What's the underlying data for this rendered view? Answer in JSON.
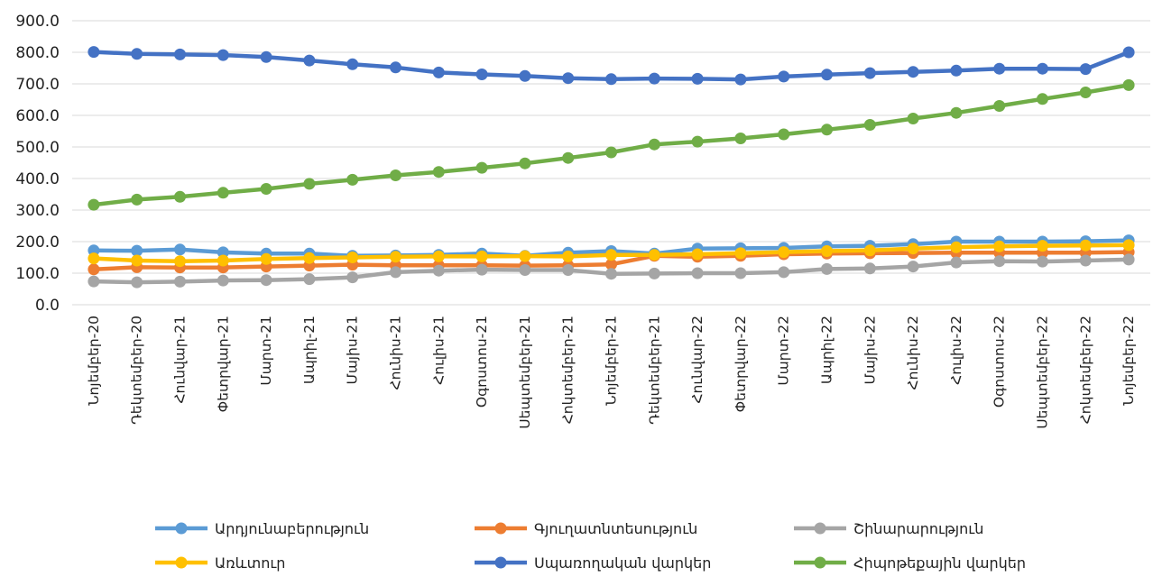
{
  "chart_data": {
    "type": "line",
    "title": "",
    "xlabel": "",
    "ylabel": "",
    "ylim": [
      0,
      900
    ],
    "yticks": [
      "0.0",
      "100.0",
      "200.0",
      "300.0",
      "400.0",
      "500.0",
      "600.0",
      "700.0",
      "800.0",
      "900.0"
    ],
    "grid": "horizontal",
    "legend_position": "bottom",
    "categories": [
      "Նոյեմբեր-20",
      "Դեկտեմբեր-20",
      "Հունվար-21",
      "Փետրվար-21",
      "Մարտ-21",
      "Ապրիլ-21",
      "Մայիս-21",
      "Հունիս-21",
      "Հուլիս-21",
      "Օգոստոս-21",
      "Սեպտեմբեր-21",
      "Հոկտեմբեր-21",
      "Նոյեմբեր-21",
      "Դեկտեմբեր-21",
      "Հունվար-22",
      "Փետրվար-22",
      "Մարտ-22",
      "Ապրիլ-22",
      "Մայիս-22",
      "Հունիս-22",
      "Հուլիս-22",
      "Օգոստոս-22",
      "Սեպտեմբեր-22",
      "Հոկտեմբեր-22",
      "Նոյեմբեր-22"
    ],
    "series": [
      {
        "name": "Արդյունաբերություն",
        "color": "#5b9bd5",
        "values": [
          172,
          171,
          175,
          166,
          162,
          162,
          155,
          156,
          158,
          162,
          155,
          165,
          170,
          162,
          178,
          179,
          180,
          185,
          187,
          192,
          200,
          200,
          200,
          201,
          204
        ]
      },
      {
        "name": "Գյուղատնտեսություն",
        "color": "#ed7d31",
        "values": [
          112,
          119,
          118,
          118,
          121,
          124,
          127,
          125,
          125,
          125,
          124,
          125,
          128,
          155,
          152,
          155,
          160,
          162,
          163,
          164,
          165,
          165,
          165,
          165,
          167
        ]
      },
      {
        "name": "Շինարարություն",
        "color": "#a5a5a5",
        "values": [
          74,
          71,
          73,
          77,
          78,
          81,
          87,
          103,
          108,
          111,
          110,
          110,
          98,
          99,
          100,
          100,
          103,
          113,
          115,
          121,
          134,
          138,
          137,
          140,
          143
        ]
      },
      {
        "name": "Առևտուր",
        "color": "#ffc000",
        "values": [
          147,
          140,
          138,
          140,
          145,
          148,
          150,
          152,
          153,
          153,
          154,
          153,
          158,
          158,
          160,
          163,
          167,
          170,
          172,
          178,
          182,
          185,
          187,
          188,
          189
        ]
      },
      {
        "name": "Սպառողական վարկեր",
        "color": "#4472c4",
        "values": [
          801,
          795,
          793,
          791,
          785,
          774,
          762,
          752,
          736,
          730,
          725,
          718,
          715,
          717,
          716,
          714,
          723,
          729,
          734,
          738,
          742,
          748,
          748,
          747,
          800
        ]
      },
      {
        "name": "Հիպոթեքային վարկեր",
        "color": "#70ad47",
        "values": [
          317,
          333,
          342,
          355,
          367,
          383,
          396,
          410,
          421,
          434,
          448,
          465,
          483,
          508,
          517,
          527,
          540,
          555,
          570,
          590,
          608,
          630,
          652,
          673,
          696
        ]
      }
    ]
  }
}
